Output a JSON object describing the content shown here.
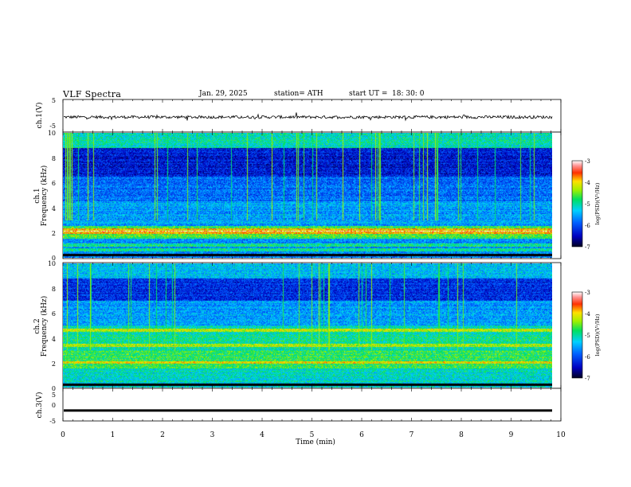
{
  "header": {
    "title": "VLF Spectra",
    "date": "Jan. 29, 2025",
    "station": "station= ATH",
    "start_label": "start UT =",
    "start_value": "18: 30: 0"
  },
  "chart_data": [
    {
      "type": "line",
      "panel": "ch1-waveform",
      "ylabel": "ch.1(V)",
      "ylim": [
        -5,
        5
      ],
      "yticks": [
        "5",
        "-5"
      ],
      "xlim": [
        0,
        10
      ],
      "series": [
        {
          "values_description_level": -0.4,
          "color": "#000000"
        }
      ]
    },
    {
      "type": "heatmap",
      "panel": "ch1-spectrogram",
      "ylabel_line1": "ch.1",
      "ylabel_line2": "Frequency (kHz)",
      "ylim": [
        0,
        10
      ],
      "yticks": [
        "0",
        "2",
        "4",
        "6",
        "8",
        "10"
      ],
      "xlim": [
        0,
        9.8
      ],
      "bands_khz": [
        0.6,
        1.0,
        2.0,
        2.2
      ],
      "colorbar": {
        "label": "log(PSD)(V²/Hz)",
        "ticks": [
          "-3",
          "-4",
          "-5",
          "-6",
          "-7"
        ],
        "range": [
          -7,
          -3
        ]
      }
    },
    {
      "type": "heatmap",
      "panel": "ch2-spectrogram",
      "ylabel_line1": "ch.2",
      "ylabel_line2": "Frequency (kHz)",
      "ylim": [
        0,
        10
      ],
      "yticks": [
        "0",
        "2",
        "4",
        "6",
        "8",
        "10"
      ],
      "xlim": [
        0,
        9.8
      ],
      "bands_khz": [
        2.0,
        3.4,
        4.6
      ],
      "colorbar": {
        "label": "log(PSD)(V²/Hz)",
        "ticks": [
          "-3",
          "-4",
          "-5",
          "-6",
          "-7"
        ],
        "range": [
          -7,
          -3
        ]
      }
    },
    {
      "type": "line",
      "panel": "ch3-waveform",
      "ylabel": "ch.3(V)",
      "ylim": [
        -5,
        5
      ],
      "yticks": [
        "5",
        "0",
        "-5"
      ],
      "xlim": [
        0,
        10
      ],
      "xlabel": "Time (min)",
      "xticks": [
        "0",
        "1",
        "2",
        "3",
        "4",
        "5",
        "6",
        "7",
        "8",
        "9",
        "10"
      ],
      "series": [
        {
          "level": -1.8,
          "color": "#000000"
        }
      ]
    }
  ]
}
